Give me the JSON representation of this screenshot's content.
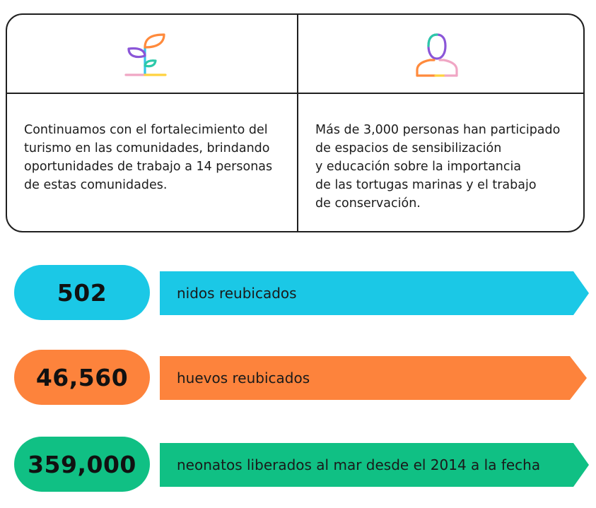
{
  "card": {
    "left_text": [
      "Continuamos con el fortalecimiento del",
      "turismo en las comunidades, brindando",
      "oportunidades de trabajo a 14 personas",
      "de estas comunidades."
    ],
    "right_text": [
      "Más de 3,000 personas han participado",
      "de espacios de sensibilización",
      "y educación sobre la importancia",
      "de las tortugas marinas y el trabajo",
      "de conservación."
    ],
    "left_icon": "sprout-icon",
    "right_icon": "person-icon"
  },
  "stats": [
    {
      "value": "502",
      "label": "nidos reubicados",
      "color": "#1bc8e6"
    },
    {
      "value": "46,560",
      "label": "huevos reubicados",
      "color": "#fd833c"
    },
    {
      "value": "359,000",
      "label": "neonatos liberados al mar desde el 2014 a la fecha",
      "color": "#10c084"
    }
  ],
  "icon_colors": {
    "purple": "#8b56d8",
    "pink": "#f0a6c4",
    "yellow": "#ffd23f",
    "teal": "#2cc9a9",
    "orange": "#ff8a3c",
    "cyan": "#35c4e8"
  }
}
